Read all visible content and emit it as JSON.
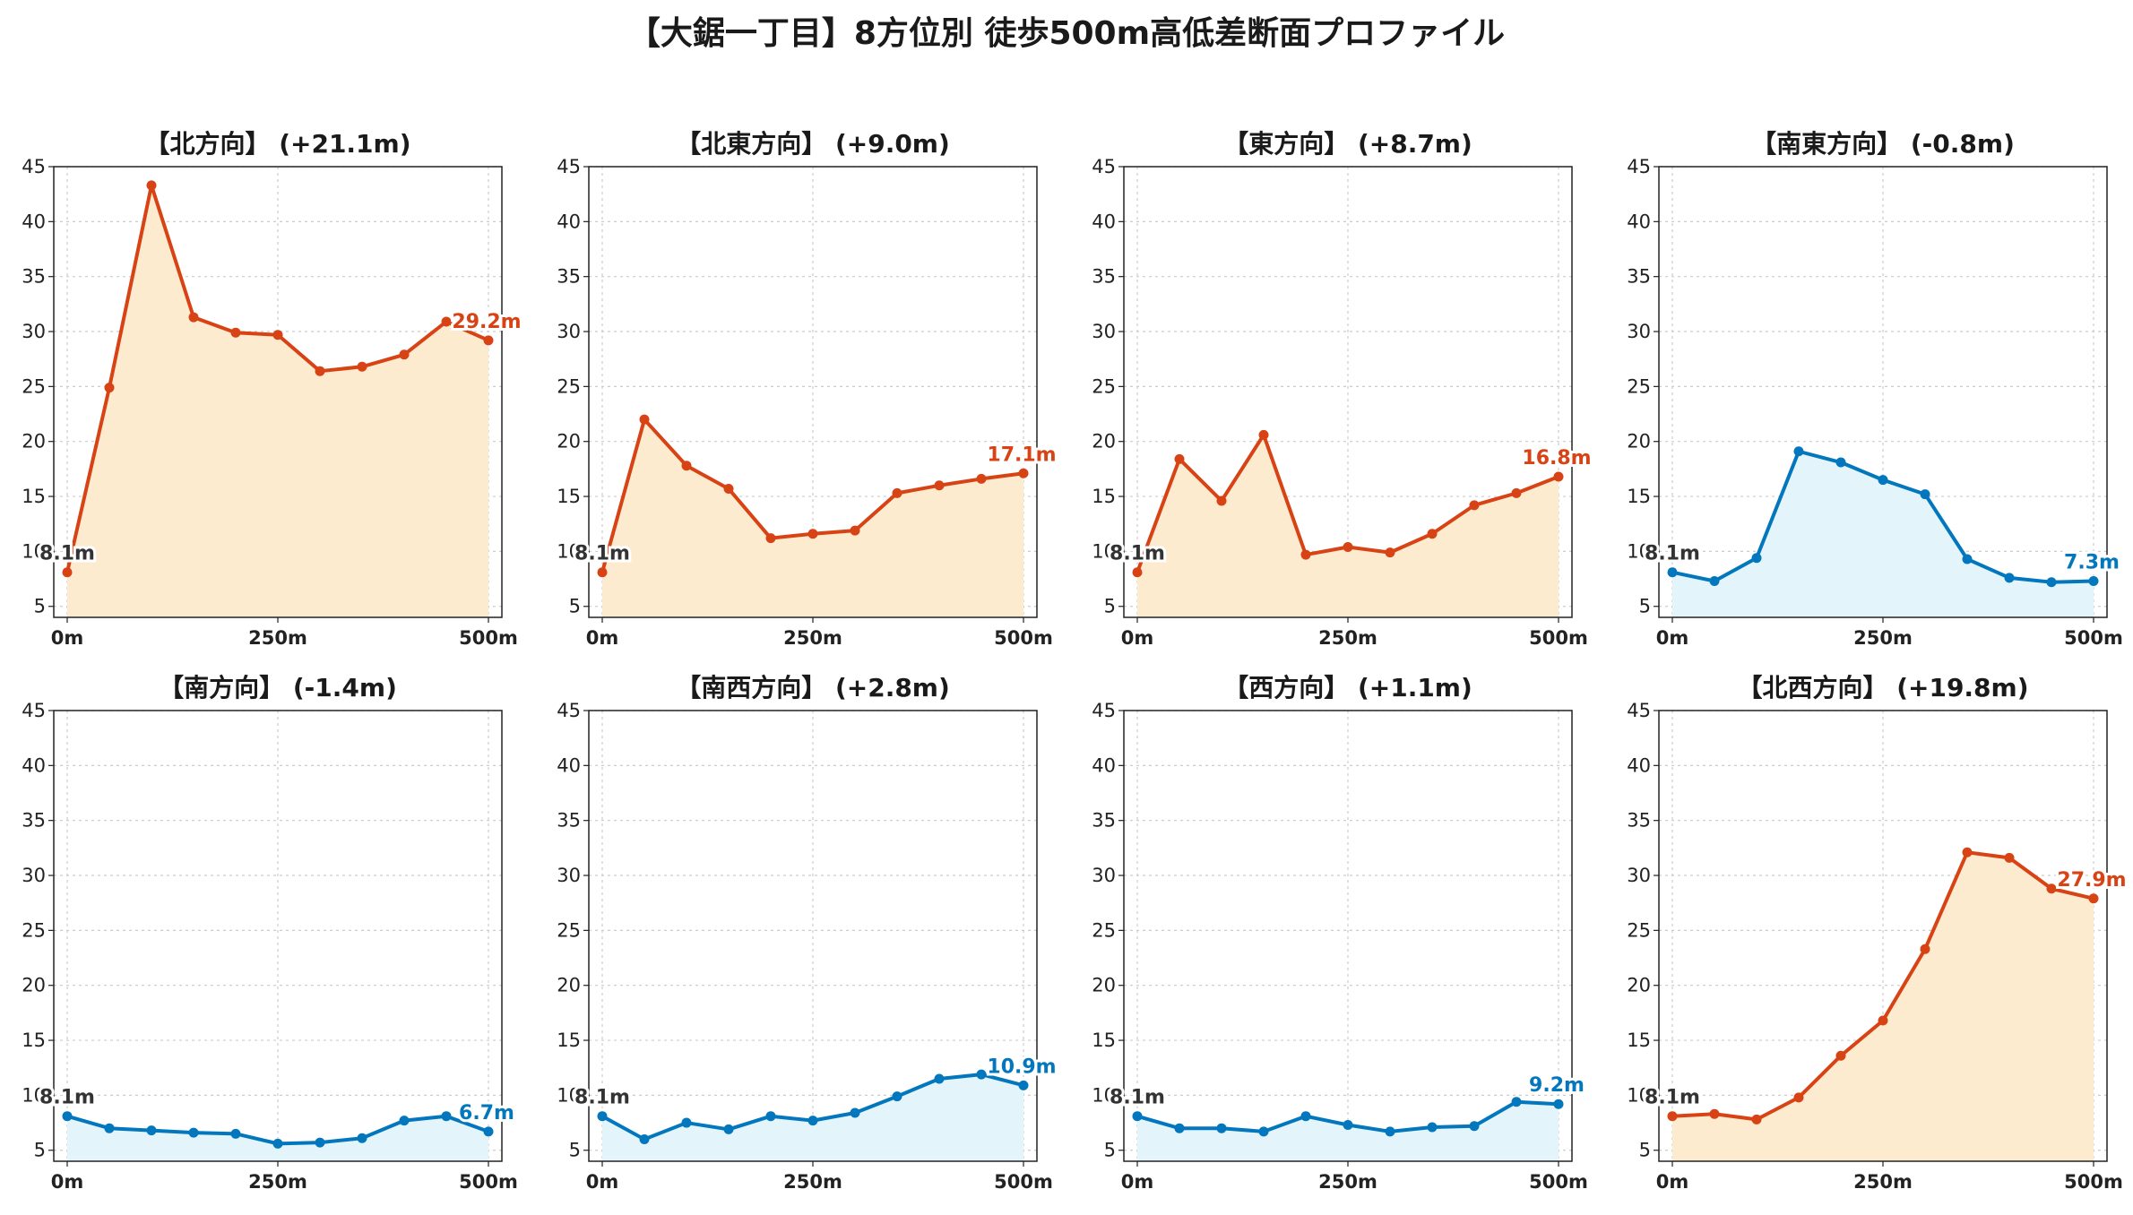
{
  "title": "【大鋸一丁目】8方位別 徒歩500m高低差断面プロファイル",
  "colors": {
    "up_line": "#d84315",
    "up_fill": "#fdebd0",
    "down_line": "#0277bd",
    "down_fill": "#e3f4fb",
    "grid": "#cccccc"
  },
  "chart_data": [
    {
      "type": "area",
      "title": "【北方向】 (+21.1m)",
      "trend": "up",
      "x": [
        0,
        50,
        100,
        150,
        200,
        250,
        300,
        350,
        400,
        450,
        500
      ],
      "y": [
        8.1,
        24.9,
        43.3,
        31.3,
        29.9,
        29.7,
        26.4,
        26.8,
        27.9,
        30.9,
        29.2
      ],
      "ylim": [
        4,
        45
      ],
      "yticks": [
        5,
        10,
        15,
        20,
        25,
        30,
        35,
        40,
        45
      ],
      "xticks": [
        "0m",
        "250m",
        "500m"
      ],
      "start_label": "8.1m",
      "end_label": "29.2m",
      "grid": true
    },
    {
      "type": "area",
      "title": "【北東方向】 (+9.0m)",
      "trend": "up",
      "x": [
        0,
        50,
        100,
        150,
        200,
        250,
        300,
        350,
        400,
        450,
        500
      ],
      "y": [
        8.1,
        22.0,
        17.8,
        15.7,
        11.2,
        11.6,
        11.9,
        15.3,
        16.0,
        16.6,
        17.1
      ],
      "ylim": [
        4,
        45
      ],
      "yticks": [
        5,
        10,
        15,
        20,
        25,
        30,
        35,
        40,
        45
      ],
      "xticks": [
        "0m",
        "250m",
        "500m"
      ],
      "start_label": "8.1m",
      "end_label": "17.1m",
      "grid": true
    },
    {
      "type": "area",
      "title": "【東方向】 (+8.7m)",
      "trend": "up",
      "x": [
        0,
        50,
        100,
        150,
        200,
        250,
        300,
        350,
        400,
        450,
        500
      ],
      "y": [
        8.1,
        18.4,
        14.6,
        20.6,
        9.7,
        10.4,
        9.9,
        11.6,
        14.2,
        15.3,
        16.8
      ],
      "ylim": [
        4,
        45
      ],
      "yticks": [
        5,
        10,
        15,
        20,
        25,
        30,
        35,
        40,
        45
      ],
      "xticks": [
        "0m",
        "250m",
        "500m"
      ],
      "start_label": "8.1m",
      "end_label": "16.8m",
      "grid": true
    },
    {
      "type": "area",
      "title": "【南東方向】 (-0.8m)",
      "trend": "down",
      "x": [
        0,
        50,
        100,
        150,
        200,
        250,
        300,
        350,
        400,
        450,
        500
      ],
      "y": [
        8.1,
        7.3,
        9.4,
        19.1,
        18.1,
        16.5,
        15.2,
        9.3,
        7.6,
        7.2,
        7.3
      ],
      "ylim": [
        4,
        45
      ],
      "yticks": [
        5,
        10,
        15,
        20,
        25,
        30,
        35,
        40,
        45
      ],
      "xticks": [
        "0m",
        "250m",
        "500m"
      ],
      "start_label": "8.1m",
      "end_label": "7.3m",
      "grid": true
    },
    {
      "type": "area",
      "title": "【南方向】 (-1.4m)",
      "trend": "down",
      "x": [
        0,
        50,
        100,
        150,
        200,
        250,
        300,
        350,
        400,
        450,
        500
      ],
      "y": [
        8.1,
        7.0,
        6.8,
        6.6,
        6.5,
        5.6,
        5.7,
        6.1,
        7.7,
        8.1,
        6.7
      ],
      "ylim": [
        4,
        45
      ],
      "yticks": [
        5,
        10,
        15,
        20,
        25,
        30,
        35,
        40,
        45
      ],
      "xticks": [
        "0m",
        "250m",
        "500m"
      ],
      "start_label": "8.1m",
      "end_label": "6.7m",
      "grid": true
    },
    {
      "type": "area",
      "title": "【南西方向】 (+2.8m)",
      "trend": "down",
      "x": [
        0,
        50,
        100,
        150,
        200,
        250,
        300,
        350,
        400,
        450,
        500
      ],
      "y": [
        8.1,
        6.0,
        7.5,
        6.9,
        8.1,
        7.7,
        8.4,
        9.9,
        11.5,
        11.9,
        10.9
      ],
      "ylim": [
        4,
        45
      ],
      "yticks": [
        5,
        10,
        15,
        20,
        25,
        30,
        35,
        40,
        45
      ],
      "xticks": [
        "0m",
        "250m",
        "500m"
      ],
      "start_label": "8.1m",
      "end_label": "10.9m",
      "grid": true
    },
    {
      "type": "area",
      "title": "【西方向】 (+1.1m)",
      "trend": "down",
      "x": [
        0,
        50,
        100,
        150,
        200,
        250,
        300,
        350,
        400,
        450,
        500
      ],
      "y": [
        8.1,
        7.0,
        7.0,
        6.7,
        8.1,
        7.3,
        6.7,
        7.1,
        7.2,
        9.4,
        9.2
      ],
      "ylim": [
        4,
        45
      ],
      "yticks": [
        5,
        10,
        15,
        20,
        25,
        30,
        35,
        40,
        45
      ],
      "xticks": [
        "0m",
        "250m",
        "500m"
      ],
      "start_label": "8.1m",
      "end_label": "9.2m",
      "grid": true
    },
    {
      "type": "area",
      "title": "【北西方向】 (+19.8m)",
      "trend": "up",
      "x": [
        0,
        50,
        100,
        150,
        200,
        250,
        300,
        350,
        400,
        450,
        500
      ],
      "y": [
        8.1,
        8.3,
        7.8,
        9.8,
        13.6,
        16.8,
        23.3,
        32.1,
        31.6,
        28.8,
        27.9
      ],
      "ylim": [
        4,
        45
      ],
      "yticks": [
        5,
        10,
        15,
        20,
        25,
        30,
        35,
        40,
        45
      ],
      "xticks": [
        "0m",
        "250m",
        "500m"
      ],
      "start_label": "8.1m",
      "end_label": "27.9m",
      "grid": true
    }
  ]
}
